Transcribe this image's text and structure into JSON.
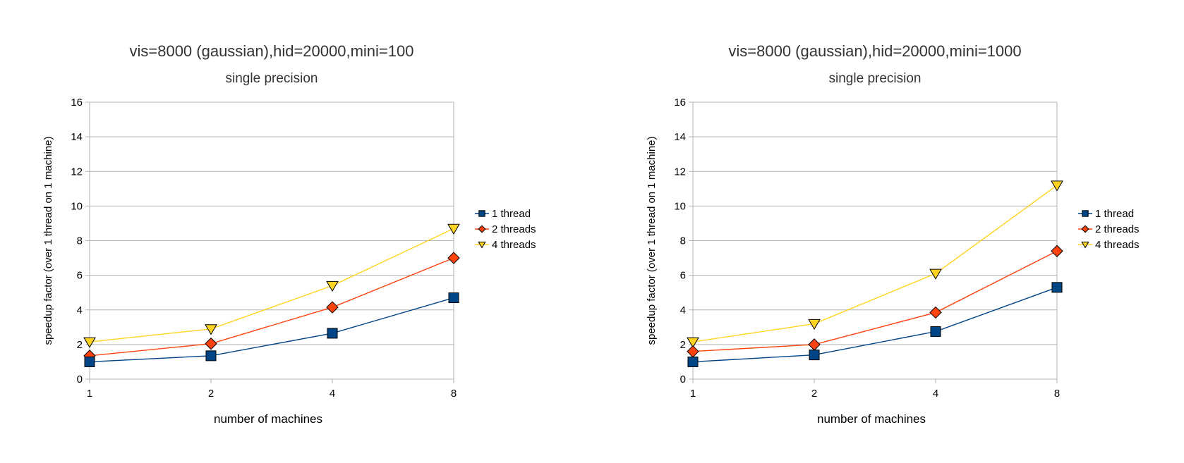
{
  "chart_data": [
    {
      "type": "line",
      "title": "vis=8000 (gaussian),hid=20000,mini=100",
      "subtitle": "single precision",
      "xlabel": "number of machines",
      "ylabel": "speedup factor (over 1 thread on 1 machine)",
      "categories": [
        "1",
        "2",
        "4",
        "8"
      ],
      "ylim": [
        0,
        16
      ],
      "yticks": [
        "0",
        "2",
        "4",
        "6",
        "8",
        "10",
        "12",
        "14",
        "16"
      ],
      "grid": true,
      "legend_position": "right",
      "series": [
        {
          "name": "1 thread",
          "values": [
            1.0,
            1.35,
            2.65,
            4.7
          ],
          "color": "#004586",
          "marker": "square"
        },
        {
          "name": "2 threads",
          "values": [
            1.35,
            2.05,
            4.15,
            7.0
          ],
          "color": "#ff420e",
          "marker": "diamond"
        },
        {
          "name": "4 threads",
          "values": [
            2.15,
            2.9,
            5.4,
            8.7
          ],
          "color": "#ffd320",
          "marker": "triangle-down"
        }
      ]
    },
    {
      "type": "line",
      "title": "vis=8000 (gaussian),hid=20000,mini=1000",
      "subtitle": "single precision",
      "xlabel": "number of machines",
      "ylabel": "speedup factor (over 1 thread on 1 machine)",
      "categories": [
        "1",
        "2",
        "4",
        "8"
      ],
      "ylim": [
        0,
        16
      ],
      "yticks": [
        "0",
        "2",
        "4",
        "6",
        "8",
        "10",
        "12",
        "14",
        "16"
      ],
      "grid": true,
      "legend_position": "right",
      "series": [
        {
          "name": "1 thread",
          "values": [
            1.0,
            1.4,
            2.75,
            5.3
          ],
          "color": "#004586",
          "marker": "square"
        },
        {
          "name": "2 threads",
          "values": [
            1.6,
            2.0,
            3.85,
            7.4
          ],
          "color": "#ff420e",
          "marker": "diamond"
        },
        {
          "name": "4 threads",
          "values": [
            2.15,
            3.2,
            6.1,
            11.2
          ],
          "color": "#ffd320",
          "marker": "triangle-down"
        }
      ]
    }
  ]
}
